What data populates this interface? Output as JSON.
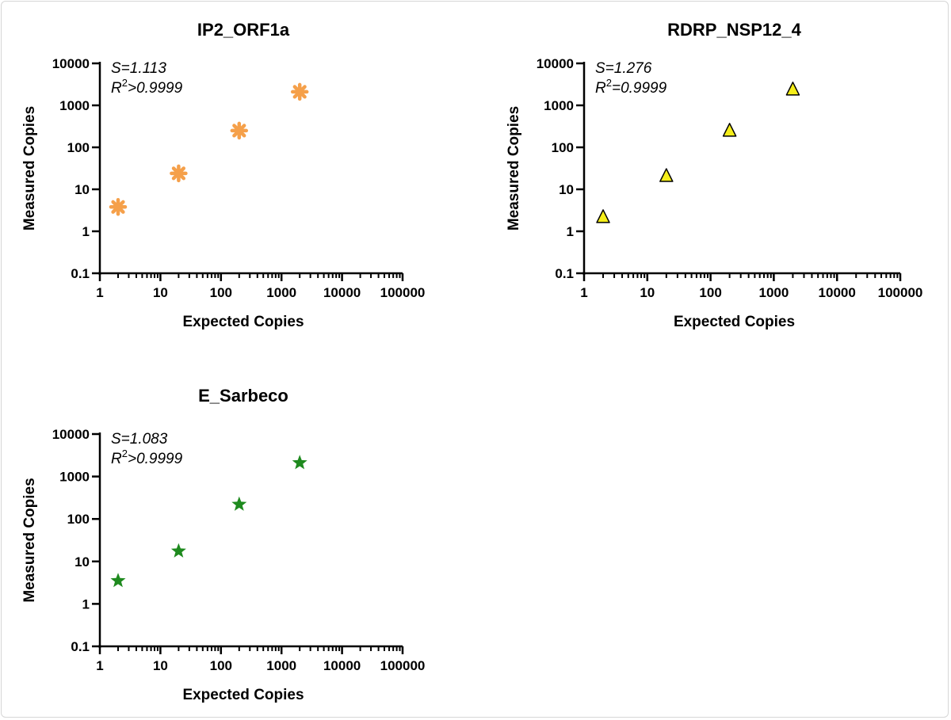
{
  "chart_data": [
    {
      "type": "scatter",
      "title": "IP2_ORF1a",
      "xlabel": "Expected Copies",
      "ylabel": "Measured Copies",
      "xscale": "log",
      "yscale": "log",
      "xlim": [
        1,
        100000
      ],
      "ylim": [
        0.1,
        10000
      ],
      "xticks": [
        "1",
        "10",
        "100",
        "1000",
        "10000",
        "100000"
      ],
      "yticks": [
        "0.1",
        "1",
        "10",
        "100",
        "1000",
        "10000"
      ],
      "marker": "asterisk",
      "color": "#f5a04a",
      "annotation": {
        "slope": "S=1.113",
        "r2_prefix": "R",
        "r2_sup": "2",
        "r2_rest": ">0.9999"
      },
      "points": [
        {
          "x": 2,
          "y": 3.8
        },
        {
          "x": 20,
          "y": 24
        },
        {
          "x": 200,
          "y": 250
        },
        {
          "x": 2000,
          "y": 2100
        }
      ]
    },
    {
      "type": "scatter",
      "title": "RDRP_NSP12_4",
      "xlabel": "Expected Copies",
      "ylabel": "Measured Copies",
      "xscale": "log",
      "yscale": "log",
      "xlim": [
        1,
        100000
      ],
      "ylim": [
        0.1,
        10000
      ],
      "xticks": [
        "1",
        "10",
        "100",
        "1000",
        "10000",
        "100000"
      ],
      "yticks": [
        "0.1",
        "1",
        "10",
        "100",
        "1000",
        "10000"
      ],
      "marker": "triangle",
      "color": "#f5ee1a",
      "annotation": {
        "slope": "S=1.276",
        "r2_prefix": "R",
        "r2_sup": "2",
        "r2_rest": "=0.9999"
      },
      "points": [
        {
          "x": 2,
          "y": 2.1
        },
        {
          "x": 20,
          "y": 20
        },
        {
          "x": 200,
          "y": 240
        },
        {
          "x": 2000,
          "y": 2300
        }
      ]
    },
    {
      "type": "scatter",
      "title": "E_Sarbeco",
      "xlabel": "Expected Copies",
      "ylabel": "Measured Copies",
      "xscale": "log",
      "yscale": "log",
      "xlim": [
        1,
        100000
      ],
      "ylim": [
        0.1,
        10000
      ],
      "xticks": [
        "1",
        "10",
        "100",
        "1000",
        "10000",
        "100000"
      ],
      "yticks": [
        "0.1",
        "1",
        "10",
        "100",
        "1000",
        "10000"
      ],
      "marker": "star",
      "color": "#1e8a1e",
      "annotation": {
        "slope": "S=1.083",
        "r2_prefix": "R",
        "r2_sup": "2",
        "r2_rest": ">0.9999"
      },
      "points": [
        {
          "x": 2,
          "y": 3.5
        },
        {
          "x": 20,
          "y": 17.5
        },
        {
          "x": 200,
          "y": 220
        },
        {
          "x": 2000,
          "y": 2100
        }
      ]
    }
  ]
}
